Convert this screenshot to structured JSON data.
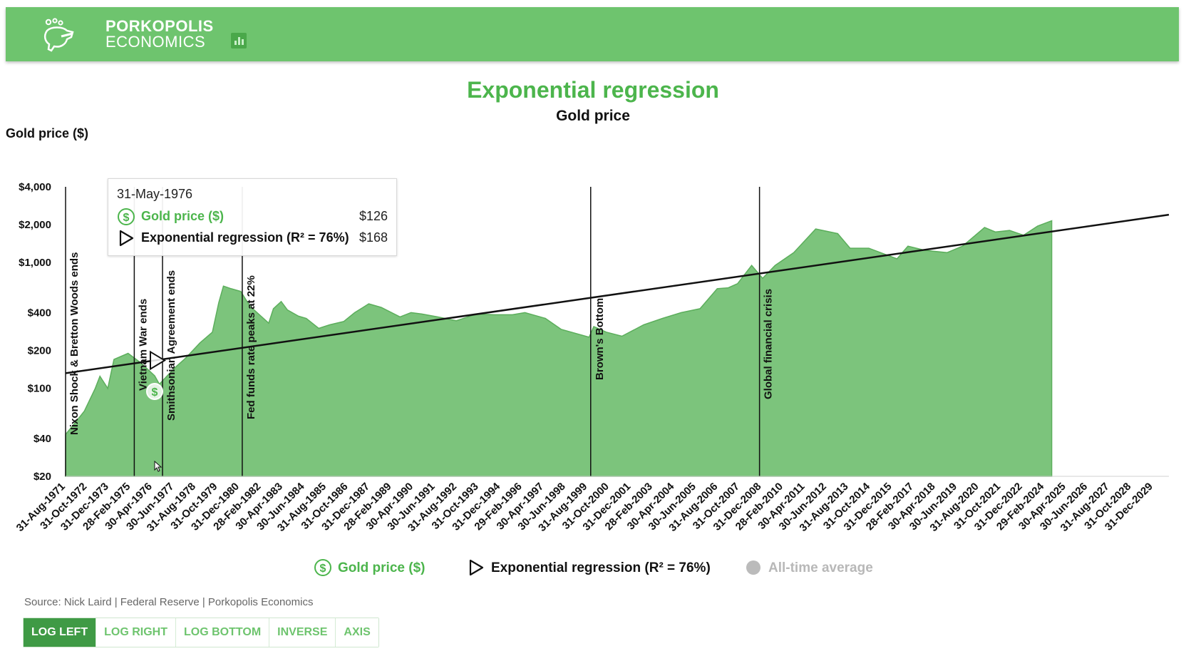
{
  "header": {
    "brand_line1": "PORKOPOLIS",
    "brand_line2": "ECONOMICS",
    "logo_icon": "pig-icon",
    "chart_icon": "bar-chart-icon",
    "bar_color": "#6ec46e"
  },
  "tooltip": {
    "date": "31-May-1976",
    "gold_label": "Gold price ($)",
    "gold_value": "$126",
    "regression_label": "Exponential regression (R² = 76%)",
    "regression_value": "$168"
  },
  "legend": {
    "gold": "Gold price ($)",
    "regression": "Exponential regression (R² = 76%)",
    "average": "All-time average"
  },
  "source": "Source: Nick Laird | Federal Reserve | Porkopolis Economics",
  "buttons": [
    {
      "label": "LOG LEFT",
      "active": true
    },
    {
      "label": "LOG RIGHT",
      "active": false
    },
    {
      "label": "LOG BOTTOM",
      "active": false
    },
    {
      "label": "INVERSE",
      "active": false
    },
    {
      "label": "AXIS",
      "active": false
    }
  ],
  "colors": {
    "accent": "#4cb54c",
    "area_fill": "#7cc47c",
    "area_stroke": "#5cae5c",
    "regression_line": "#111111",
    "active_button": "#3f9a45",
    "average_disabled": "#bbbbbb"
  },
  "chart_data": {
    "type": "area",
    "title": "Exponential regression",
    "subtitle": "Gold price",
    "ylabel": "Gold price ($)",
    "xlabel": "",
    "y_scale": "log",
    "ylim": [
      20,
      4000
    ],
    "xlim": [
      "1971-08-31",
      "2030-06-30"
    ],
    "yticks": [
      {
        "value": 20,
        "label": "$20"
      },
      {
        "value": 40,
        "label": "$40"
      },
      {
        "value": 100,
        "label": "$100"
      },
      {
        "value": 200,
        "label": "$200"
      },
      {
        "value": 400,
        "label": "$400"
      },
      {
        "value": 1000,
        "label": "$1,000"
      },
      {
        "value": 2000,
        "label": "$2,000"
      },
      {
        "value": 4000,
        "label": "$4,000"
      }
    ],
    "xtick_labels": [
      "31-Aug-1971",
      "31-Oct-1972",
      "31-Dec-1973",
      "28-Feb-1975",
      "30-Apr-1976",
      "30-Jun-1977",
      "31-Aug-1978",
      "31-Oct-1979",
      "31-Dec-1980",
      "28-Feb-1982",
      "30-Apr-1983",
      "30-Jun-1984",
      "31-Aug-1985",
      "31-Oct-1986",
      "31-Dec-1987",
      "28-Feb-1989",
      "30-Apr-1990",
      "30-Jun-1991",
      "31-Aug-1992",
      "31-Oct-1993",
      "31-Dec-1994",
      "29-Feb-1996",
      "30-Apr-1997",
      "30-Jun-1998",
      "31-Aug-1999",
      "31-Oct-2000",
      "31-Dec-2001",
      "28-Feb-2003",
      "30-Apr-2004",
      "30-Jun-2005",
      "31-Aug-2006",
      "31-Oct-2007",
      "31-Dec-2008",
      "28-Feb-2010",
      "30-Apr-2011",
      "30-Jun-2012",
      "31-Aug-2013",
      "31-Oct-2014",
      "31-Dec-2015",
      "28-Feb-2017",
      "30-Apr-2018",
      "30-Jun-2019",
      "31-Aug-2020",
      "31-Oct-2021",
      "31-Dec-2022",
      "29-Feb-2024",
      "30-Apr-2025",
      "30-Jun-2026",
      "31-Aug-2027",
      "31-Oct-2028",
      "31-Dec-2029"
    ],
    "series": [
      {
        "name": "Gold price ($)",
        "kind": "area",
        "x": [
          "1971-08-31",
          "1972-03-31",
          "1972-08-31",
          "1973-03-31",
          "1973-06-30",
          "1973-11-30",
          "1974-03-31",
          "1974-12-31",
          "1975-08-31",
          "1976-05-31",
          "1976-08-31",
          "1977-06-30",
          "1978-01-31",
          "1978-10-31",
          "1979-06-30",
          "1979-10-31",
          "1980-01-31",
          "1980-06-30",
          "1980-12-31",
          "1981-06-30",
          "1982-06-30",
          "1982-09-30",
          "1983-02-28",
          "1983-06-30",
          "1984-01-31",
          "1984-06-30",
          "1985-02-28",
          "1985-09-30",
          "1986-06-30",
          "1987-01-31",
          "1987-10-31",
          "1988-06-30",
          "1989-06-30",
          "1990-01-31",
          "1990-08-31",
          "1991-06-30",
          "1992-06-30",
          "1993-07-31",
          "1994-06-30",
          "1995-06-30",
          "1996-02-28",
          "1997-03-31",
          "1998-01-31",
          "1999-07-31",
          "1999-10-31",
          "2000-06-30",
          "2001-04-30",
          "2002-06-30",
          "2003-06-30",
          "2004-06-30",
          "2005-06-30",
          "2006-05-31",
          "2006-12-31",
          "2007-06-30",
          "2008-03-31",
          "2008-10-31",
          "2009-06-30",
          "2010-06-30",
          "2011-08-31",
          "2012-10-31",
          "2013-06-30",
          "2014-06-30",
          "2015-12-31",
          "2016-07-31",
          "2017-06-30",
          "2018-08-31",
          "2019-06-30",
          "2020-08-31",
          "2021-03-31",
          "2021-12-31",
          "2022-09-30",
          "2023-06-30",
          "2024-03-31"
        ],
        "y": [
          43,
          55,
          66,
          100,
          125,
          100,
          170,
          190,
          160,
          126,
          108,
          146,
          175,
          230,
          280,
          480,
          650,
          620,
          590,
          450,
          330,
          430,
          490,
          420,
          375,
          360,
          300,
          320,
          340,
          400,
          470,
          440,
          370,
          400,
          390,
          370,
          345,
          390,
          385,
          385,
          400,
          360,
          295,
          255,
          310,
          280,
          260,
          320,
          360,
          400,
          430,
          620,
          630,
          680,
          950,
          750,
          950,
          1200,
          1850,
          1700,
          1300,
          1300,
          1070,
          1350,
          1250,
          1200,
          1350,
          1900,
          1750,
          1800,
          1650,
          1950,
          2150
        ]
      },
      {
        "name": "Exponential regression (R² = 76%)",
        "kind": "line",
        "x": [
          "1971-08-31",
          "2030-06-30"
        ],
        "y": [
          132,
          2400
        ]
      }
    ],
    "events": [
      {
        "date": "1971-08-31",
        "label": "Nixon Shock & Bretton Woods ends"
      },
      {
        "date": "1975-04-30",
        "label": "Vietnam War ends"
      },
      {
        "date": "1976-10-31",
        "label": "Smithsonian Agreement ends"
      },
      {
        "date": "1981-01-31",
        "label": "Fed funds rate peaks at 22%"
      },
      {
        "date": "1999-08-31",
        "label": "Brown's Bottom"
      },
      {
        "date": "2008-08-31",
        "label": "Global financial crisis"
      }
    ],
    "hover_point": {
      "date": "1976-05-31"
    },
    "legend_position": "bottom-center",
    "grid": false
  }
}
